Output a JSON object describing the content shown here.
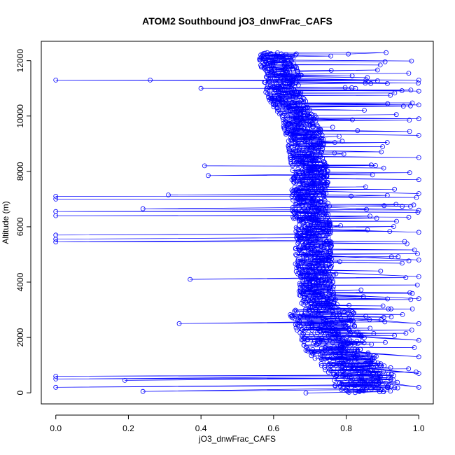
{
  "chart_data": {
    "type": "scatter",
    "title": "ATOM2 Southbound jO3_dnwFrac_CAFS",
    "xlabel": "jO3_dnwFrac_CAFS",
    "ylabel": "Altitude (m)",
    "xlim": [
      -0.04,
      1.04
    ],
    "ylim": [
      -400,
      12700
    ],
    "xticks": [
      0.0,
      0.2,
      0.4,
      0.6,
      0.8,
      1.0
    ],
    "xtick_labels": [
      "0.0",
      "0.2",
      "0.4",
      "0.6",
      "0.8",
      "1.0"
    ],
    "yticks": [
      0,
      2000,
      4000,
      6000,
      8000,
      10000,
      12000
    ],
    "ytick_labels": [
      "0",
      "2000",
      "4000",
      "6000",
      "8000",
      "10000",
      "12000"
    ],
    "grid": false,
    "legend": "none",
    "marker": "open-circle",
    "connected": true,
    "color": "#0000ff",
    "profile": [
      {
        "alt": 0,
        "x": 0.86
      },
      {
        "alt": 200,
        "x": 0.86
      },
      {
        "alt": 500,
        "x": 0.85
      },
      {
        "alt": 1000,
        "x": 0.82
      },
      {
        "alt": 1500,
        "x": 0.78
      },
      {
        "alt": 2000,
        "x": 0.76
      },
      {
        "alt": 2500,
        "x": 0.74
      },
      {
        "alt": 3000,
        "x": 0.73
      },
      {
        "alt": 3500,
        "x": 0.72
      },
      {
        "alt": 4000,
        "x": 0.72
      },
      {
        "alt": 4500,
        "x": 0.71
      },
      {
        "alt": 5000,
        "x": 0.71
      },
      {
        "alt": 5500,
        "x": 0.71
      },
      {
        "alt": 6000,
        "x": 0.71
      },
      {
        "alt": 6500,
        "x": 0.7
      },
      {
        "alt": 7000,
        "x": 0.7
      },
      {
        "alt": 7500,
        "x": 0.7
      },
      {
        "alt": 8000,
        "x": 0.7
      },
      {
        "alt": 8500,
        "x": 0.69
      },
      {
        "alt": 9000,
        "x": 0.69
      },
      {
        "alt": 9500,
        "x": 0.68
      },
      {
        "alt": 10000,
        "x": 0.67
      },
      {
        "alt": 10500,
        "x": 0.64
      },
      {
        "alt": 11000,
        "x": 0.62
      },
      {
        "alt": 11500,
        "x": 0.63
      },
      {
        "alt": 12000,
        "x": 0.6
      },
      {
        "alt": 12300,
        "x": 0.62
      }
    ],
    "outliers": [
      {
        "x": 0.0,
        "y": 11300
      },
      {
        "x": 0.0,
        "y": 7100
      },
      {
        "x": 0.0,
        "y": 7000
      },
      {
        "x": 0.0,
        "y": 6550
      },
      {
        "x": 0.0,
        "y": 6400
      },
      {
        "x": 0.0,
        "y": 5700
      },
      {
        "x": 0.0,
        "y": 5550
      },
      {
        "x": 0.0,
        "y": 5450
      },
      {
        "x": 0.0,
        "y": 600
      },
      {
        "x": 0.0,
        "y": 500
      },
      {
        "x": 0.0,
        "y": 200
      },
      {
        "x": 0.19,
        "y": 450
      },
      {
        "x": 0.24,
        "y": 50
      },
      {
        "x": 0.26,
        "y": 11300
      },
      {
        "x": 0.31,
        "y": 7150
      },
      {
        "x": 0.34,
        "y": 2500
      },
      {
        "x": 0.37,
        "y": 4100
      },
      {
        "x": 0.41,
        "y": 8200
      },
      {
        "x": 0.42,
        "y": 7850
      },
      {
        "x": 0.4,
        "y": 11000
      },
      {
        "x": 0.24,
        "y": 6650
      },
      {
        "x": 1.0,
        "y": 11300
      },
      {
        "x": 1.0,
        "y": 10900
      },
      {
        "x": 1.0,
        "y": 10400
      },
      {
        "x": 1.0,
        "y": 9900
      },
      {
        "x": 1.0,
        "y": 9300
      },
      {
        "x": 1.0,
        "y": 8500
      },
      {
        "x": 1.0,
        "y": 7700
      },
      {
        "x": 1.0,
        "y": 7200
      },
      {
        "x": 1.0,
        "y": 6600
      },
      {
        "x": 1.0,
        "y": 5800
      },
      {
        "x": 1.0,
        "y": 4800
      },
      {
        "x": 1.0,
        "y": 4200
      },
      {
        "x": 1.0,
        "y": 3400
      },
      {
        "x": 1.0,
        "y": 2500
      },
      {
        "x": 1.0,
        "y": 1900
      },
      {
        "x": 1.0,
        "y": 1300
      },
      {
        "x": 1.0,
        "y": 700
      },
      {
        "x": 1.0,
        "y": 200
      }
    ]
  }
}
